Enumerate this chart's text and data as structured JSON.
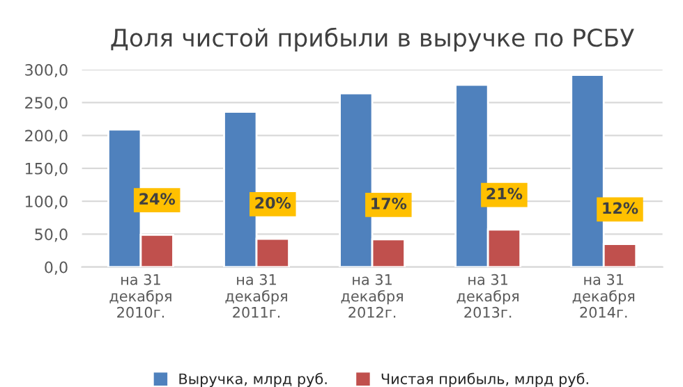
{
  "chart_data": {
    "type": "bar",
    "title": "Доля чистой прибыли в выручке по РСБУ",
    "categories": [
      "на 31\nдекабря\n2010г.",
      "на 31\nдекабря\n2011г.",
      "на 31\nдекабря\n2012г.",
      "на 31\nдекабря\n2013г.",
      "на 31\nдекабря\n2014г."
    ],
    "series": [
      {
        "name": "Выручка, млрд руб.",
        "color": "#4f81bd",
        "values": [
          209,
          236,
          264,
          277,
          292
        ]
      },
      {
        "name": "Чистая прибыль, млрд руб.",
        "color": "#c0504d",
        "values": [
          49,
          43,
          42,
          57,
          35
        ]
      }
    ],
    "annotations": [
      {
        "text": "24%",
        "x": "на 31\nдекабря\n2010г.",
        "y": 49
      },
      {
        "text": "20%",
        "x": "на 31\nдекабря\n2011г.",
        "y": 43
      },
      {
        "text": "17%",
        "x": "на 31\nдекабря\n2012г.",
        "y": 42
      },
      {
        "text": "21%",
        "x": "на 31\nдекабря\n2013г.",
        "y": 57
      },
      {
        "text": "12%",
        "x": "на 31\nдекабря\n2014г.",
        "y": 35
      }
    ],
    "ylim": [
      0,
      300
    ],
    "yticks": [
      {
        "value": 0,
        "label": "0,0"
      },
      {
        "value": 50,
        "label": "50,0"
      },
      {
        "value": 100,
        "label": "100,0"
      },
      {
        "value": 150,
        "label": "150,0"
      },
      {
        "value": 200,
        "label": "200,0"
      },
      {
        "value": 250,
        "label": "250,0"
      },
      {
        "value": 300,
        "label": "300,0"
      }
    ],
    "grid": "y",
    "legend": "bottom"
  }
}
